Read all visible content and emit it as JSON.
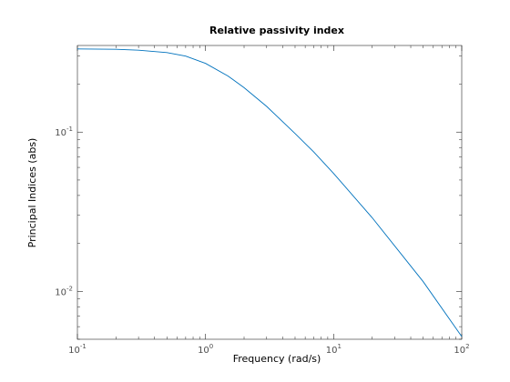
{
  "colors": {
    "series": "#0072bd",
    "axis": "#262626",
    "tick_text": "#4d4d4d",
    "background": "#ffffff"
  },
  "chart_data": {
    "type": "line",
    "title": "Relative passivity index",
    "xlabel": "Frequency (rad/s)",
    "ylabel": "Principal Indices (abs)",
    "x_scale": "log",
    "y_scale": "log",
    "xlim": [
      0.1,
      100
    ],
    "ylim": [
      0.005,
      0.35
    ],
    "grid": false,
    "x_ticks": [
      {
        "value": 0.1,
        "base": "10",
        "exp": "-1"
      },
      {
        "value": 1,
        "base": "10",
        "exp": "0"
      },
      {
        "value": 10,
        "base": "10",
        "exp": "1"
      },
      {
        "value": 100,
        "base": "10",
        "exp": "2"
      }
    ],
    "y_ticks": [
      {
        "value": 0.01,
        "base": "10",
        "exp": "-2"
      },
      {
        "value": 0.1,
        "base": "10",
        "exp": "-1"
      }
    ],
    "series": [
      {
        "x": [
          0.1,
          0.2,
          0.3,
          0.5,
          0.7,
          1,
          1.5,
          2,
          3,
          5,
          7,
          10,
          20,
          50,
          100
        ],
        "y": [
          0.333,
          0.331,
          0.327,
          0.316,
          0.3,
          0.27,
          0.225,
          0.19,
          0.145,
          0.098,
          0.075,
          0.055,
          0.029,
          0.0115,
          0.0052
        ]
      }
    ]
  }
}
